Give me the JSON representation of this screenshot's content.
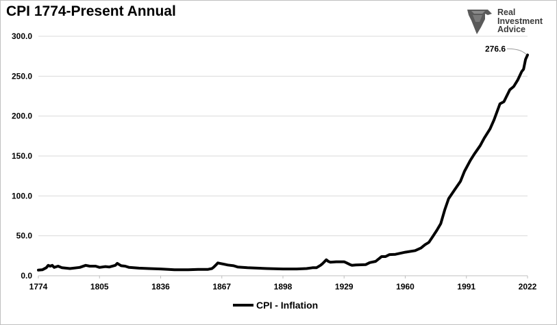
{
  "chart_data": {
    "type": "line",
    "title": "CPI 1774-Present Annual",
    "xlabel": "",
    "ylabel": "",
    "xlim": [
      1774,
      2022
    ],
    "ylim": [
      0,
      300
    ],
    "y_ticks": [
      "0.0",
      "50.0",
      "100.0",
      "150.0",
      "200.0",
      "250.0",
      "300.0"
    ],
    "x_ticks": [
      "1774",
      "1805",
      "1836",
      "1867",
      "1898",
      "1929",
      "1960",
      "1991",
      "2022"
    ],
    "grid": "horizontal",
    "legend_position": "bottom",
    "series": [
      {
        "name": "CPI - Inflation",
        "color": "#000000",
        "x": [
          1774,
          1776,
          1778,
          1779,
          1780,
          1781,
          1782,
          1784,
          1786,
          1790,
          1795,
          1798,
          1800,
          1803,
          1805,
          1808,
          1810,
          1813,
          1814,
          1815,
          1816,
          1818,
          1820,
          1825,
          1830,
          1836,
          1840,
          1843,
          1850,
          1855,
          1860,
          1862,
          1863,
          1864,
          1865,
          1866,
          1868,
          1870,
          1873,
          1875,
          1880,
          1890,
          1898,
          1905,
          1910,
          1913,
          1915,
          1917,
          1918,
          1919,
          1920,
          1921,
          1922,
          1925,
          1929,
          1930,
          1932,
          1933,
          1935,
          1940,
          1942,
          1945,
          1947,
          1948,
          1950,
          1952,
          1955,
          1960,
          1965,
          1968,
          1970,
          1972,
          1974,
          1976,
          1978,
          1980,
          1982,
          1985,
          1988,
          1990,
          1993,
          1995,
          1998,
          2000,
          2003,
          2005,
          2008,
          2010,
          2013,
          2015,
          2017,
          2019,
          2020,
          2021,
          2022
        ],
        "y": [
          7.0,
          7.5,
          10.0,
          13.0,
          12.0,
          13.0,
          10.5,
          12.0,
          10.0,
          9.0,
          10.5,
          13.0,
          12.0,
          12.0,
          10.5,
          11.5,
          11.0,
          13.0,
          15.5,
          14.0,
          12.5,
          12.0,
          10.5,
          9.5,
          9.0,
          8.5,
          8.0,
          7.5,
          7.5,
          8.0,
          8.0,
          9.0,
          11.0,
          13.5,
          16.0,
          15.5,
          14.5,
          13.5,
          12.5,
          11.0,
          10.0,
          9.0,
          8.5,
          8.5,
          9.0,
          10.0,
          10.0,
          13.0,
          15.0,
          17.5,
          20.0,
          18.0,
          17.0,
          17.5,
          17.5,
          16.5,
          14.0,
          13.0,
          13.5,
          14.0,
          16.5,
          18.0,
          22.0,
          24.0,
          24.0,
          26.5,
          26.8,
          29.5,
          31.5,
          34.8,
          38.8,
          41.8,
          49.3,
          56.9,
          65.2,
          82.4,
          96.5,
          107.6,
          118.3,
          130.7,
          144.5,
          152.4,
          163.0,
          172.2,
          184.0,
          195.3,
          215.3,
          218.1,
          233.0,
          237.0,
          245.1,
          255.7,
          258.8,
          271.0,
          276.6
        ]
      }
    ],
    "annotations": [
      {
        "text": "276.6",
        "x": 2022,
        "y": 276.6
      }
    ]
  },
  "logo": {
    "line1": "Real",
    "line2": "Investment",
    "line3": "Advice",
    "color": "#3a3a3a"
  }
}
